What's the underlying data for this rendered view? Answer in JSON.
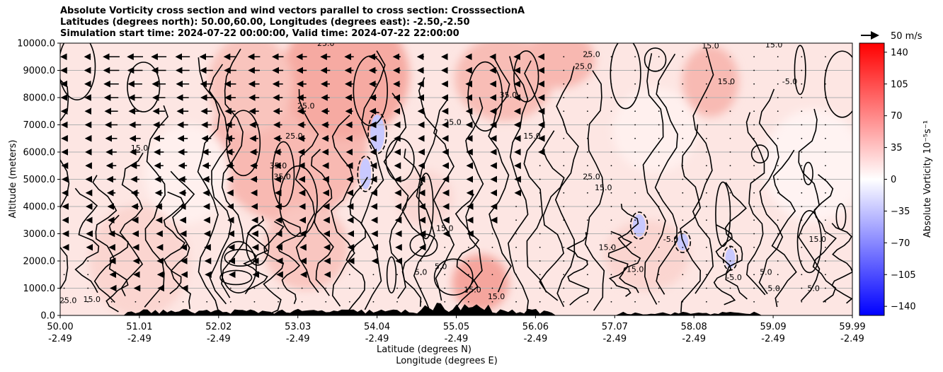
{
  "title_lines": [
    "Absolute Vorticity cross section and wind vectors parallel to cross section: CrosssectionA",
    "Latitudes (degrees north): 50.00,60.00, Longitudes (degrees east): -2.50,-2.50",
    "Simulation start time: 2024-07-22 00:00:00, Valid time: 2024-07-22 22:00:00"
  ],
  "chart_data": {
    "type": "heatmap",
    "ylabel": "Altitude (meters)",
    "xlabel_lines": [
      "Latitude (degrees N)",
      "Longitude (degrees E)"
    ],
    "ylim": [
      0,
      10000
    ],
    "y_ticks": [
      "0.0",
      "1000.0",
      "2000.0",
      "3000.0",
      "4000.0",
      "5000.0",
      "6000.0",
      "7000.0",
      "8000.0",
      "9000.0",
      "10000.0"
    ],
    "x_ticks": [
      {
        "lat": "50.00",
        "lon": "-2.49"
      },
      {
        "lat": "51.01",
        "lon": "-2.49"
      },
      {
        "lat": "52.02",
        "lon": "-2.49"
      },
      {
        "lat": "53.03",
        "lon": "-2.49"
      },
      {
        "lat": "54.04",
        "lon": "-2.49"
      },
      {
        "lat": "55.05",
        "lon": "-2.49"
      },
      {
        "lat": "56.06",
        "lon": "-2.49"
      },
      {
        "lat": "57.07",
        "lon": "-2.49"
      },
      {
        "lat": "58.08",
        "lon": "-2.49"
      },
      {
        "lat": "59.09",
        "lon": "-2.49"
      },
      {
        "lat": "59.99",
        "lon": "-2.49"
      }
    ],
    "grid": "horizontal",
    "colorbar": {
      "label": "Absolute Vorticity 10⁻⁵s⁻¹",
      "ticks": [
        "140",
        "105",
        "70",
        "35",
        "0",
        "−35",
        "−70",
        "−105",
        "−140"
      ],
      "range": [
        -150,
        150
      ],
      "colormap": [
        "#0000ff",
        "#ffffff",
        "#ff0000"
      ]
    },
    "contour_levels": [
      "5.0",
      "15.0",
      "25.0",
      "35.0",
      "45.0",
      "-5.0"
    ],
    "contour_labels": [
      {
        "text": "25.0",
        "lat": 53.35,
        "alt": 9900
      },
      {
        "text": "15.0",
        "lat": 58.2,
        "alt": 9800
      },
      {
        "text": "15.0",
        "lat": 59.0,
        "alt": 9850
      },
      {
        "text": "25.0",
        "lat": 56.7,
        "alt": 9500
      },
      {
        "text": "25.0",
        "lat": 56.6,
        "alt": 9050
      },
      {
        "text": "15.0",
        "lat": 58.4,
        "alt": 8500
      },
      {
        "text": "-5.0",
        "lat": 59.2,
        "alt": 8500
      },
      {
        "text": "35.0",
        "lat": 55.65,
        "alt": 8000
      },
      {
        "text": "25.0",
        "lat": 53.1,
        "alt": 7600
      },
      {
        "text": "25.0",
        "lat": 52.95,
        "alt": 6500
      },
      {
        "text": "25.0",
        "lat": 54.95,
        "alt": 7000
      },
      {
        "text": "15.0",
        "lat": 51.0,
        "alt": 6050
      },
      {
        "text": "15.0",
        "lat": 55.95,
        "alt": 6500
      },
      {
        "text": "35.0",
        "lat": 52.75,
        "alt": 5400
      },
      {
        "text": "35.0",
        "lat": 52.8,
        "alt": 5000
      },
      {
        "text": "25.0",
        "lat": 56.7,
        "alt": 5000
      },
      {
        "text": "15.0",
        "lat": 56.85,
        "alt": 4600
      },
      {
        "text": "15.0",
        "lat": 54.85,
        "alt": 3100
      },
      {
        "text": "15.0",
        "lat": 56.9,
        "alt": 2400
      },
      {
        "text": "15.0",
        "lat": 57.25,
        "alt": 1600
      },
      {
        "text": "15.0",
        "lat": 59.55,
        "alt": 2700
      },
      {
        "text": "-5.0",
        "lat": 57.7,
        "alt": 2700
      },
      {
        "text": "5.0",
        "lat": 54.55,
        "alt": 1500
      },
      {
        "text": "5.0",
        "lat": 54.8,
        "alt": 1700
      },
      {
        "text": "25.0",
        "lat": 50.1,
        "alt": 450
      },
      {
        "text": "15.0",
        "lat": 50.4,
        "alt": 500
      },
      {
        "text": "5.0",
        "lat": 59.0,
        "alt": 900
      },
      {
        "text": "5.0",
        "lat": 59.5,
        "alt": 900
      },
      {
        "text": "5.0",
        "lat": 58.9,
        "alt": 1500
      },
      {
        "text": "-5.0",
        "lat": 58.5,
        "alt": 1300
      },
      {
        "text": "15.0",
        "lat": 55.2,
        "alt": 850
      },
      {
        "text": "15.0",
        "lat": 55.5,
        "alt": 600
      }
    ],
    "wind_key": {
      "label": "50 m/s"
    },
    "wind_vectors_note": "Arrows parallel to cross section; strongest (pointing south) in upper levels north of 50.5N, weakening toward 56N"
  }
}
